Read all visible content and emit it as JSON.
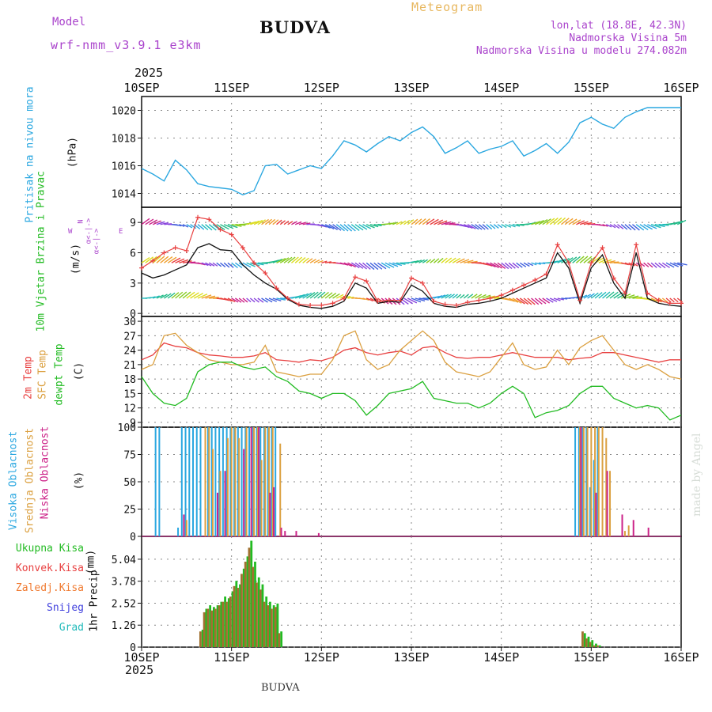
{
  "header": {
    "model_label": "Model",
    "model_name": "wrf-nmm_v3.9.1 e3km",
    "station": "BUDVA",
    "title": "Meteogram",
    "coords": "lon,lat (18.8E, 42.3N)",
    "elevation": "Nadmorska Visina 5m",
    "model_elevation": "Nadmorska Visina u modelu 274.082m",
    "footer_station": "BUDVA",
    "credit": "made by Angel"
  },
  "colors": {
    "pressure": "#2aa7e0",
    "wind_label": "#22bb22",
    "wind_dir_legend": "#aa44cc",
    "temp_2m": "#e84040",
    "temp_sfc": "#dba040",
    "dewpoint": "#22bb22",
    "cloud_high": "#2aa7e0",
    "cloud_mid": "#dba040",
    "cloud_low": "#cc2288",
    "precip_total": "#22bb22",
    "precip_conv": "#e84040",
    "precip_frozen": "#f07a30",
    "snow": "#4040dd",
    "hail": "#22bbbb",
    "title_meteogram": "#e8b860",
    "header_purple": "#aa44cc"
  },
  "chart_data": [
    {
      "type": "line",
      "panel": "pressure",
      "ylabel": "Pritisak na nivou mora",
      "yunit": "(hPa)",
      "ylim": [
        1013,
        1021
      ],
      "yticks": [
        1014,
        1016,
        1018,
        1020
      ],
      "x_hours": [
        0,
        3,
        6,
        9,
        12,
        15,
        18,
        21,
        24,
        27,
        30,
        33,
        36,
        39,
        42,
        45,
        48,
        51,
        54,
        57,
        60,
        63,
        66,
        69,
        72,
        75,
        78,
        81,
        84,
        87,
        90,
        93,
        96,
        99,
        102,
        105,
        108,
        111,
        114,
        117,
        120,
        123,
        126,
        129,
        132,
        135,
        138,
        141,
        144
      ],
      "values": [
        1015.8,
        1015.4,
        1014.9,
        1016.4,
        1015.7,
        1014.7,
        1014.5,
        1014.4,
        1014.3,
        1013.9,
        1014.2,
        1016.0,
        1016.1,
        1015.4,
        1015.7,
        1016.0,
        1015.8,
        1016.7,
        1017.8,
        1017.5,
        1017.0,
        1017.6,
        1018.1,
        1017.8,
        1018.4,
        1018.8,
        1018.1,
        1016.9,
        1017.3,
        1017.8,
        1016.9,
        1017.2,
        1017.4,
        1017.8,
        1016.7,
        1017.1,
        1017.6,
        1016.9,
        1017.7,
        1019.1,
        1019.5,
        1019.0,
        1018.7,
        1019.5,
        1019.9,
        1020.2,
        1020.2,
        1020.2,
        1020.2
      ]
    },
    {
      "type": "line",
      "panel": "wind",
      "ylabel": "10m Vjetar Brzina i Pravac",
      "yunit": "(m/s)",
      "ylim": [
        -0.3,
        10.5
      ],
      "yticks": [
        0,
        3,
        6,
        9
      ],
      "direction_legend": [
        "N",
        "W",
        "E",
        "α<-|->",
        "α<-|->"
      ],
      "x_hours": [
        0,
        3,
        6,
        9,
        12,
        15,
        18,
        21,
        24,
        27,
        30,
        33,
        36,
        39,
        42,
        45,
        48,
        51,
        54,
        57,
        60,
        63,
        66,
        69,
        72,
        75,
        78,
        81,
        84,
        87,
        90,
        93,
        96,
        99,
        102,
        105,
        108,
        111,
        114,
        117,
        120,
        123,
        126,
        129,
        132,
        135,
        138,
        141,
        144
      ],
      "series": [
        {
          "name": "wind speed",
          "color": "#111111",
          "values": [
            4.0,
            3.5,
            3.8,
            4.3,
            4.8,
            6.5,
            6.9,
            6.3,
            6.2,
            4.8,
            3.8,
            3.0,
            2.4,
            1.4,
            0.8,
            0.6,
            0.5,
            0.7,
            1.2,
            3.0,
            2.5,
            1.0,
            1.2,
            1.1,
            2.8,
            2.2,
            1.0,
            0.7,
            0.6,
            0.9,
            1.0,
            1.2,
            1.5,
            2.0,
            2.5,
            3.0,
            3.5,
            6.0,
            4.5,
            1.0,
            4.5,
            5.8,
            3.0,
            1.5,
            6.0,
            1.5,
            1.0,
            0.8,
            0.7
          ]
        },
        {
          "name": "gust",
          "color": "#e84040",
          "values": [
            4.5,
            5.2,
            6.0,
            6.5,
            6.2,
            9.5,
            9.3,
            8.3,
            7.8,
            6.5,
            5.0,
            4.0,
            2.5,
            1.5,
            0.9,
            0.8,
            0.8,
            1.0,
            1.5,
            3.6,
            3.2,
            1.2,
            1.3,
            1.3,
            3.5,
            3.0,
            1.2,
            0.9,
            0.8,
            1.1,
            1.3,
            1.5,
            1.8,
            2.3,
            2.8,
            3.3,
            3.9,
            6.8,
            5.0,
            1.3,
            5.0,
            6.5,
            3.5,
            2.0,
            6.8,
            2.0,
            1.3,
            1.0,
            1.0
          ]
        }
      ]
    },
    {
      "type": "line",
      "panel": "temperature",
      "ylabel": [
        "2m Temp",
        "SFC Temp",
        "dewpt Temp"
      ],
      "yunit": "(C)",
      "ylim": [
        8,
        31
      ],
      "yticks": [
        9,
        12,
        15,
        18,
        21,
        24,
        27,
        30
      ],
      "x_hours": [
        0,
        3,
        6,
        9,
        12,
        15,
        18,
        21,
        24,
        27,
        30,
        33,
        36,
        39,
        42,
        45,
        48,
        51,
        54,
        57,
        60,
        63,
        66,
        69,
        72,
        75,
        78,
        81,
        84,
        87,
        90,
        93,
        96,
        99,
        102,
        105,
        108,
        111,
        114,
        117,
        120,
        123,
        126,
        129,
        132,
        135,
        138,
        141,
        144
      ],
      "series": [
        {
          "name": "2m Temp",
          "color": "#e84040",
          "values": [
            22.0,
            23.0,
            25.5,
            24.8,
            24.5,
            23.5,
            23.0,
            22.8,
            22.5,
            22.5,
            22.8,
            23.5,
            22.0,
            21.8,
            21.5,
            22.0,
            21.8,
            22.5,
            24.0,
            24.5,
            23.5,
            23.0,
            23.5,
            23.8,
            23.0,
            24.5,
            24.8,
            23.5,
            22.5,
            22.3,
            22.5,
            22.5,
            23.0,
            23.5,
            23.0,
            22.5,
            22.5,
            22.5,
            22.0,
            22.3,
            22.5,
            23.5,
            23.5,
            23.0,
            22.5,
            22.0,
            21.5,
            22.0,
            22.0
          ]
        },
        {
          "name": "SFC Temp",
          "color": "#dba040",
          "values": [
            20.0,
            21.0,
            27.0,
            27.5,
            25.0,
            23.5,
            22.0,
            21.5,
            21.0,
            21.0,
            21.5,
            25.0,
            19.5,
            19.0,
            18.5,
            19.0,
            19.0,
            22.0,
            27.0,
            28.0,
            22.0,
            20.0,
            21.0,
            24.0,
            26.0,
            28.0,
            26.0,
            21.5,
            19.5,
            19.0,
            18.5,
            19.5,
            22.5,
            25.5,
            21.0,
            20.0,
            20.5,
            24.0,
            21.0,
            24.5,
            26.0,
            27.0,
            24.0,
            21.0,
            20.0,
            21.0,
            20.0,
            18.5,
            18.0
          ]
        },
        {
          "name": "dewpt Temp",
          "color": "#22bb22",
          "values": [
            18.5,
            15.0,
            13.0,
            12.5,
            14.0,
            19.5,
            21.0,
            21.5,
            21.5,
            20.5,
            20.0,
            20.5,
            18.5,
            17.5,
            15.5,
            15.0,
            14.0,
            15.0,
            15.0,
            13.5,
            10.5,
            12.5,
            15.0,
            15.5,
            16.0,
            17.5,
            14.0,
            13.5,
            13.0,
            13.0,
            12.0,
            13.0,
            15.0,
            16.5,
            15.0,
            10.0,
            11.0,
            11.5,
            12.5,
            15.0,
            16.5,
            16.5,
            14.0,
            13.0,
            12.0,
            12.5,
            12.0,
            9.5,
            10.5
          ]
        }
      ]
    },
    {
      "type": "bar",
      "panel": "clouds",
      "ylabel": [
        "Visoka Oblacnost",
        "Srednja Oblacnost",
        "Niska Oblacnost"
      ],
      "yunit": "(%)",
      "ylim": [
        0,
        100
      ],
      "yticks": [
        0,
        25,
        50,
        75,
        100
      ],
      "series": [
        {
          "name": "Visoka Oblacnost",
          "color": "#2aa7e0",
          "x_hours": [
            4,
            5,
            10,
            11,
            12,
            13,
            14,
            15,
            16,
            18,
            19,
            20,
            21,
            22,
            23,
            24,
            25,
            26,
            27,
            28,
            29,
            30,
            31,
            32,
            33,
            34,
            35,
            36,
            116,
            117,
            118,
            119,
            120,
            121,
            122
          ],
          "values": [
            100,
            100,
            8,
            100,
            100,
            100,
            100,
            100,
            100,
            100,
            100,
            100,
            100,
            100,
            100,
            100,
            100,
            100,
            100,
            100,
            100,
            100,
            100,
            100,
            100,
            100,
            100,
            100,
            100,
            100,
            100,
            100,
            45,
            70,
            100
          ]
        },
        {
          "name": "Srednja Oblacnost",
          "color": "#dba040",
          "x_hours": [
            12,
            17,
            18,
            19,
            21,
            23,
            24,
            25,
            26,
            28,
            30,
            31,
            32,
            33,
            34,
            35,
            37,
            117,
            118,
            119,
            120,
            121,
            122,
            123,
            124,
            125,
            129,
            130
          ],
          "values": [
            15,
            100,
            100,
            80,
            60,
            90,
            100,
            100,
            90,
            100,
            100,
            100,
            70,
            100,
            100,
            100,
            85,
            100,
            100,
            100,
            100,
            100,
            100,
            100,
            90,
            60,
            5,
            10
          ]
        },
        {
          "name": "Niska Oblacnost",
          "color": "#cc2288",
          "x_hours": [
            11,
            20,
            22,
            27,
            29,
            31,
            34,
            35,
            37,
            38,
            41,
            47,
            117,
            121,
            124,
            128,
            131,
            135
          ],
          "values": [
            20,
            40,
            60,
            80,
            100,
            100,
            40,
            45,
            8,
            5,
            5,
            3,
            100,
            40,
            60,
            20,
            15,
            8
          ]
        }
      ]
    },
    {
      "type": "bar",
      "panel": "precipitation",
      "ylabel": "1hr Precip",
      "yunit": "(mm)",
      "ylim": [
        0,
        6.35
      ],
      "yticks": [
        0,
        1.26,
        2.52,
        3.78,
        5.04
      ],
      "legend": [
        "Ukupna Kisa",
        "Konvek.Kisa",
        "Zaledj.Kisa",
        "Snijeg",
        "Grad"
      ],
      "x_hours": [
        16,
        17,
        18,
        19,
        20,
        21,
        22,
        23,
        24,
        25,
        26,
        27,
        28,
        29,
        30,
        31,
        32,
        33,
        34,
        35,
        36,
        37,
        118,
        119,
        120,
        121,
        122
      ],
      "series": [
        {
          "name": "Ukupna Kisa",
          "color": "#22bb22",
          "values": [
            1.0,
            2.2,
            2.4,
            2.3,
            2.4,
            2.6,
            2.9,
            2.8,
            3.2,
            3.8,
            3.6,
            4.5,
            5.2,
            6.1,
            4.9,
            4.0,
            3.6,
            2.9,
            2.6,
            2.4,
            2.5,
            0.9,
            0.8,
            0.6,
            0.4,
            0.2,
            0.1
          ]
        },
        {
          "name": "Konvek.Kisa",
          "color": "#a07030",
          "values": [
            0.9,
            2.0,
            2.2,
            2.1,
            2.2,
            2.4,
            2.6,
            2.6,
            2.9,
            3.5,
            3.4,
            4.2,
            4.9,
            5.7,
            4.6,
            3.7,
            3.3,
            2.6,
            2.4,
            2.2,
            2.3,
            0.8,
            0.9,
            0.5,
            0.3,
            0.1,
            0.1
          ]
        }
      ]
    }
  ],
  "axis": {
    "year_top": "2025",
    "year_bottom": "2025",
    "ticks": [
      "10SEP",
      "11SEP",
      "12SEP",
      "13SEP",
      "14SEP",
      "15SEP",
      "16SEP"
    ]
  }
}
